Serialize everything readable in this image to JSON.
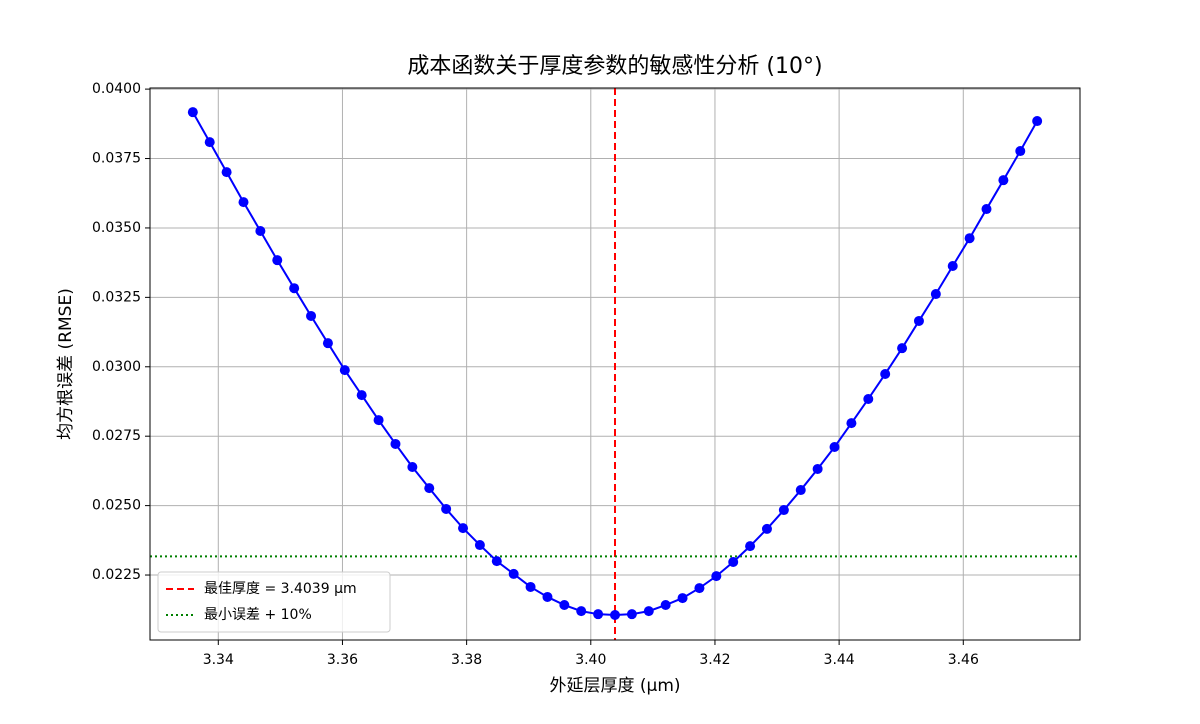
{
  "chart_data": {
    "type": "line",
    "title": "成本函数关于厚度参数的敏感性分析 (10°)",
    "x_label": "外延层厚度 (μm)",
    "y_label": "均方根误差 (RMSE)",
    "x": [
      3.3359,
      3.33862,
      3.34134,
      3.34406,
      3.34678,
      3.3495,
      3.35222,
      3.35494,
      3.35766,
      3.36038,
      3.3631,
      3.36582,
      3.36854,
      3.37126,
      3.37398,
      3.3767,
      3.37942,
      3.38214,
      3.38486,
      3.38758,
      3.3903,
      3.39302,
      3.39574,
      3.39846,
      3.40118,
      3.4039,
      3.40662,
      3.40934,
      3.41206,
      3.41478,
      3.4175,
      3.42022,
      3.42294,
      3.42566,
      3.42838,
      3.4311,
      3.43382,
      3.43654,
      3.43926,
      3.44198,
      3.4447,
      3.44742,
      3.45014,
      3.45286,
      3.45558,
      3.4583,
      3.46102,
      3.46374,
      3.46646,
      3.46918,
      3.4719
    ],
    "series": [
      {
        "color": "#0000ff",
        "marker": "circle",
        "values": [
          0.03917,
          0.03809,
          0.03701,
          0.03593,
          0.03489,
          0.03384,
          0.03283,
          0.03183,
          0.03085,
          0.02988,
          0.02898,
          0.02808,
          0.02722,
          0.02639,
          0.02563,
          0.02488,
          0.02419,
          0.02358,
          0.023,
          0.02254,
          0.02207,
          0.02171,
          0.02142,
          0.0212,
          0.02109,
          0.02106,
          0.02109,
          0.0212,
          0.02142,
          0.02167,
          0.02203,
          0.02246,
          0.02297,
          0.02354,
          0.02416,
          0.02484,
          0.02556,
          0.02632,
          0.02711,
          0.02797,
          0.02884,
          0.02974,
          0.03067,
          0.03165,
          0.03262,
          0.03363,
          0.03463,
          0.03568,
          0.03672,
          0.03777,
          0.03885
        ]
      }
    ],
    "reference_lines": [
      {
        "name": "最佳厚度 = 3.4039 μm",
        "axis": "x",
        "value": 3.4039,
        "color": "#ff0000",
        "style": "dashed"
      },
      {
        "name": "最小误差 + 10%",
        "axis": "y",
        "value": 0.02317,
        "color": "#008000",
        "style": "dotted"
      }
    ],
    "xlim": [
      3.329,
      3.4788
    ],
    "ylim": [
      0.02016,
      0.04004
    ],
    "xticks": [
      3.34,
      3.36,
      3.38,
      {
        "value": 3.4,
        "label": "3.40"
      },
      3.42,
      3.44,
      3.46
    ],
    "yticks": [
      {
        "value": 0.0225,
        "label": "0.0225"
      },
      {
        "value": 0.025,
        "label": "0.0250"
      },
      {
        "value": 0.0275,
        "label": "0.0275"
      },
      {
        "value": 0.03,
        "label": "0.0300"
      },
      {
        "value": 0.0325,
        "label": "0.0325"
      },
      {
        "value": 0.035,
        "label": "0.0350"
      },
      {
        "value": 0.0375,
        "label": "0.0375"
      },
      {
        "value": 0.04,
        "label": "0.0400"
      }
    ],
    "grid": true,
    "legend_position": "lower-left"
  }
}
